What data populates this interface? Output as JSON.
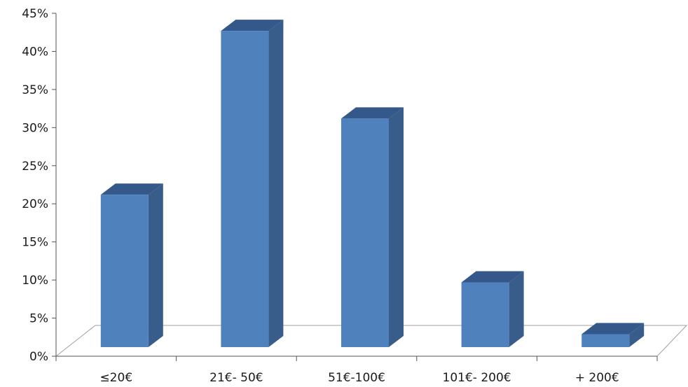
{
  "chart_data": {
    "type": "bar",
    "three_d": true,
    "categories": [
      "≤20€",
      "21€- 50€",
      "51€-100€",
      "101€- 200€",
      "+ 200€"
    ],
    "values": [
      20,
      41.5,
      30,
      8.5,
      1.7
    ],
    "ylim": [
      0,
      45
    ],
    "yticks": [
      0,
      5,
      10,
      15,
      20,
      25,
      30,
      35,
      40,
      45
    ],
    "ytick_labels": [
      "0%",
      "5%",
      "10%",
      "15%",
      "20%",
      "25%",
      "30%",
      "35%",
      "40%",
      "45%"
    ],
    "title": "",
    "xlabel": "",
    "ylabel": "",
    "grid": false,
    "legend": "none",
    "colors": {
      "bar_front": "#4f81bd",
      "bar_side": "#385d8a",
      "bar_top": "#35588a",
      "axis": "#555555"
    }
  }
}
